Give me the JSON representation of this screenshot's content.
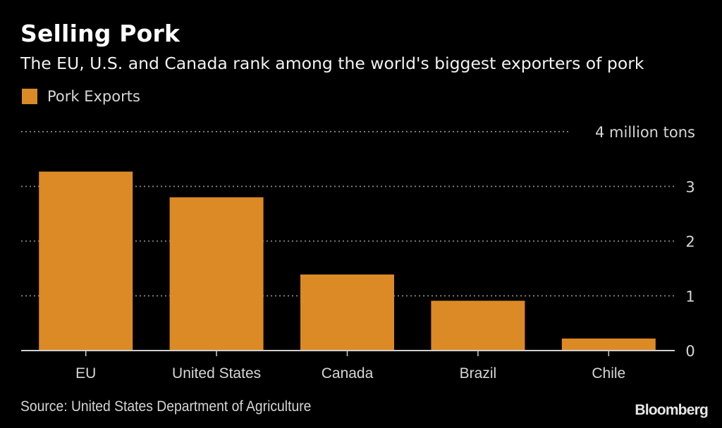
{
  "header": {
    "title": "Selling Pork",
    "subtitle": "The EU, U.S. and Canada rank among the world's biggest exporters of pork"
  },
  "legend": {
    "items": [
      {
        "label": "Pork Exports",
        "color": "#db8a25"
      }
    ]
  },
  "footer": {
    "source": "Source: United States Department of Agriculture",
    "brand": "Bloomberg"
  },
  "chart_data": {
    "type": "bar",
    "title": "Selling Pork",
    "subtitle": "The EU, U.S. and Canada rank among the world's biggest exporters of pork",
    "categories": [
      "EU",
      "United States",
      "Canada",
      "Brazil",
      "Chile"
    ],
    "series": [
      {
        "name": "Pork Exports",
        "color": "#db8a25",
        "values": [
          3.27,
          2.8,
          1.39,
          0.91,
          0.22
        ]
      }
    ],
    "xlabel": "",
    "ylabel": "million tons",
    "ylim": [
      0,
      4
    ],
    "yticks": [
      0,
      1,
      2,
      3,
      4
    ],
    "ytick_labels": [
      "0",
      "1",
      "2",
      "3",
      "4 million tons"
    ],
    "y_axis_side": "right",
    "grid": true,
    "grid_style": "dotted",
    "legend_position": "top-left"
  }
}
